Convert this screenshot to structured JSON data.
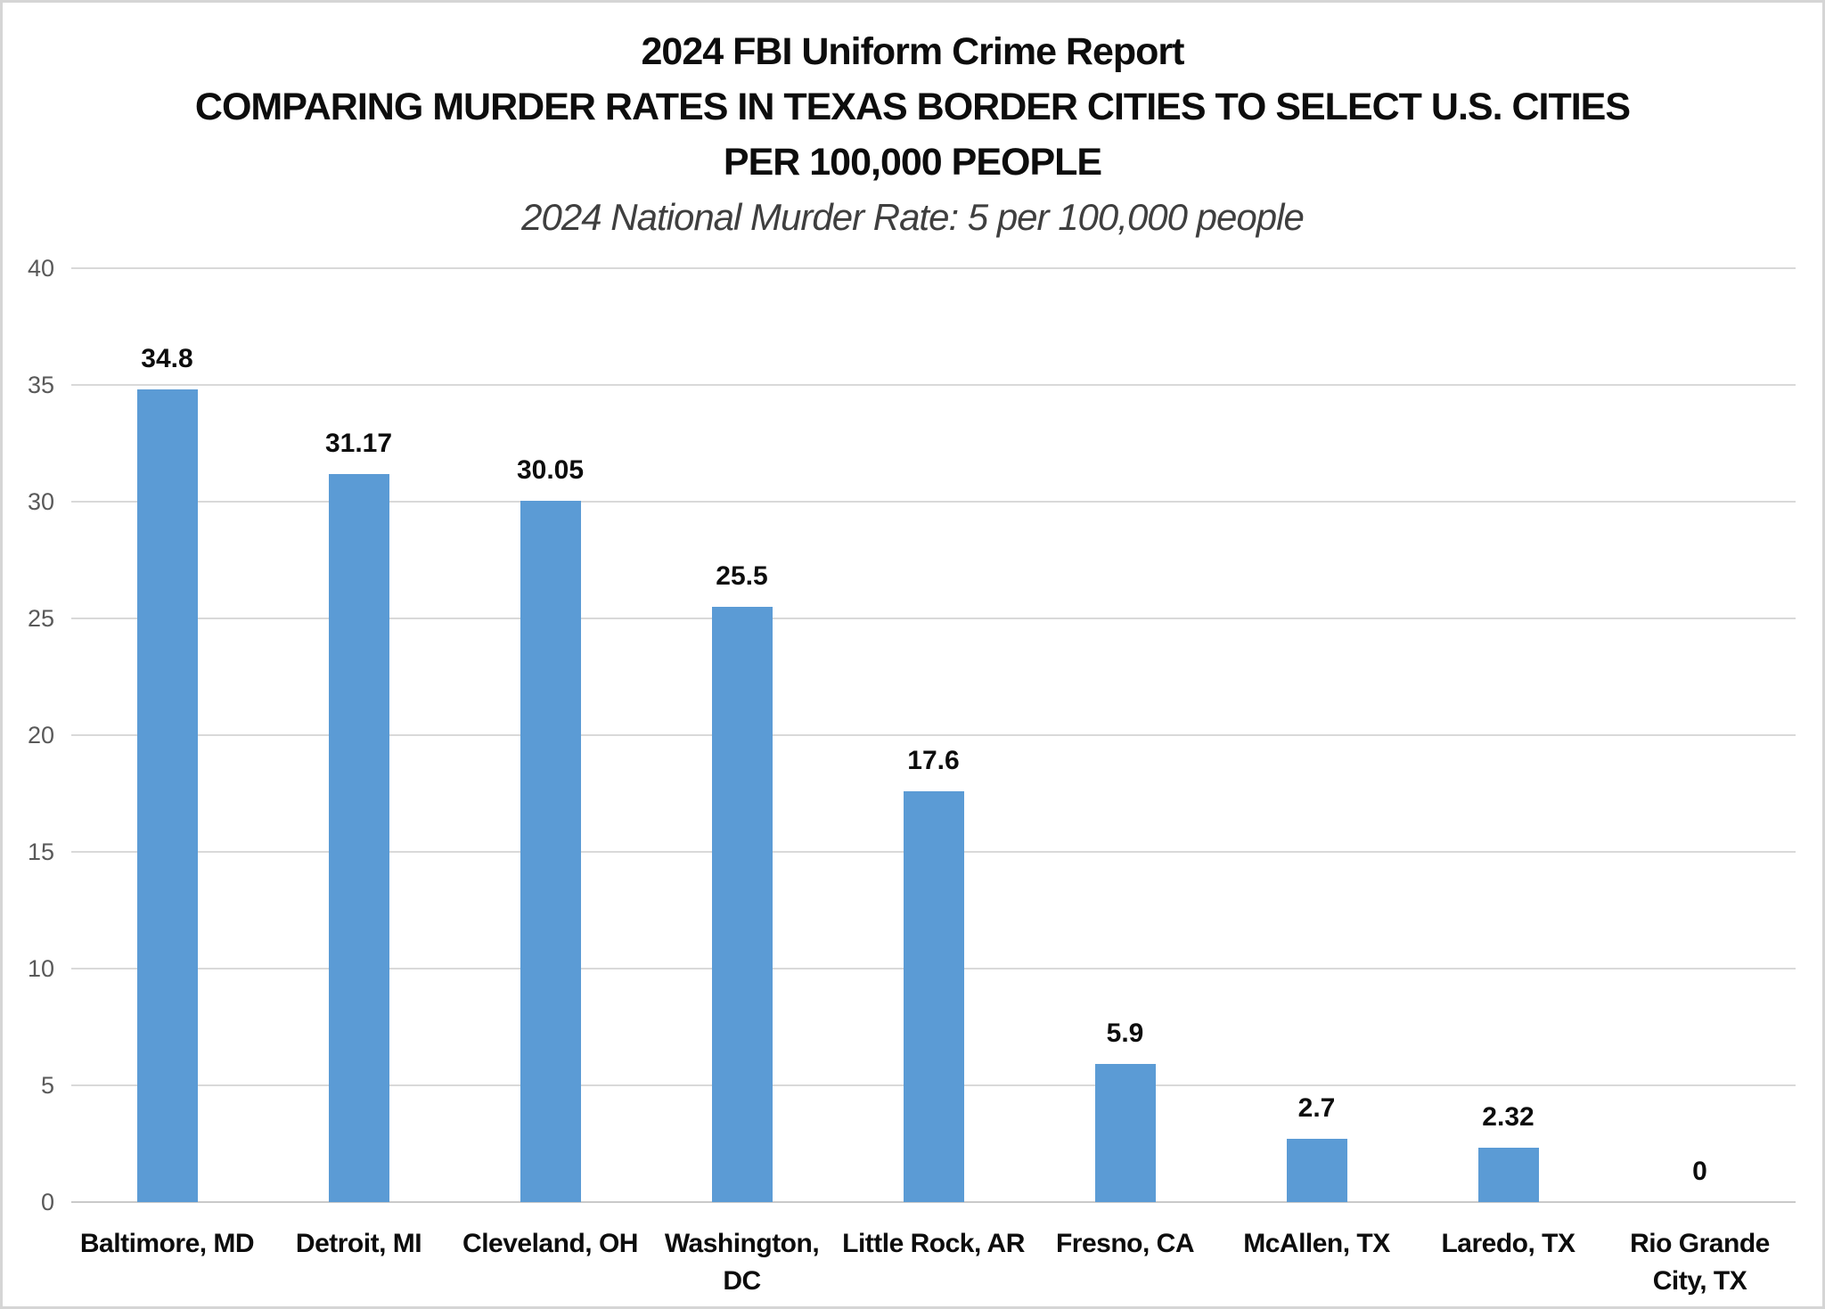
{
  "header": {
    "title_line1": "2024 FBI Uniform Crime Report",
    "title_line2": "COMPARING MURDER RATES IN TEXAS BORDER CITIES TO SELECT U.S. CITIES",
    "title_line3": "PER 100,000 PEOPLE",
    "subtitle": "2024 National Murder Rate: 5 per 100,000 people"
  },
  "colors": {
    "bar": "#5b9bd5",
    "gridline": "#d9d9d9",
    "axis_tick_label": "#595959",
    "title_text": "#0d0d0d",
    "subtitle_text": "#3f3f3f",
    "frame_border": "#d5d5d5",
    "background": "#ffffff"
  },
  "chart_data": {
    "type": "bar",
    "title": "2024 FBI Uniform Crime Report",
    "subtitle_lines": [
      "COMPARING MURDER RATES IN TEXAS BORDER CITIES TO SELECT U.S. CITIES",
      "PER 100,000 PEOPLE"
    ],
    "caption": "2024 National Murder Rate: 5 per 100,000 people",
    "categories": [
      "Baltimore, MD",
      "Detroit, MI",
      "Cleveland, OH",
      "Washington, DC",
      "Little Rock, AR",
      "Fresno, CA",
      "McAllen, TX",
      "Laredo, TX",
      "Rio Grande City, TX"
    ],
    "category_display": [
      "Baltimore, MD",
      "Detroit, MI",
      "Cleveland, OH",
      "Washington,\nDC",
      "Little Rock, AR",
      "Fresno, CA",
      "McAllen, TX",
      "Laredo, TX",
      "Rio Grande\nCity, TX"
    ],
    "values": [
      34.8,
      31.17,
      30.05,
      25.5,
      17.6,
      5.9,
      2.7,
      2.32,
      0
    ],
    "data_labels": [
      "34.8",
      "31.17",
      "30.05",
      "25.5",
      "17.6",
      "5.9",
      "2.7",
      "2.32",
      "0"
    ],
    "xlabel": "",
    "ylabel": "",
    "ylim": [
      0,
      40
    ],
    "yticks": [
      0,
      5,
      10,
      15,
      20,
      25,
      30,
      35,
      40
    ],
    "grid": true,
    "legend": false,
    "bar_color": "#5b9bd5"
  }
}
